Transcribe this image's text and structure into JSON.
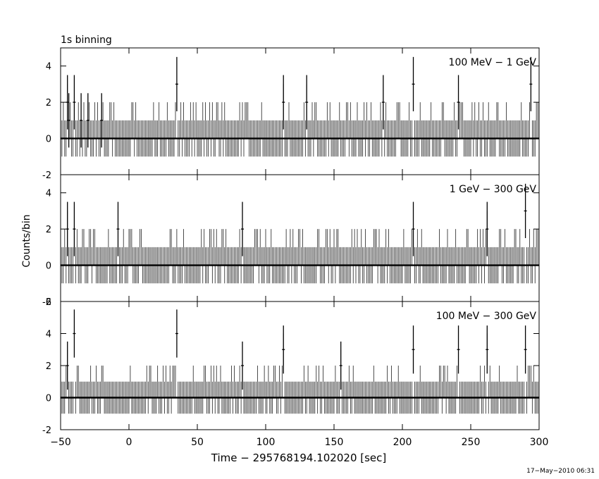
{
  "chart_data": {
    "type": "line",
    "title": "1s binning",
    "xlabel": "Time − 295768194.102020 [sec]",
    "ylabel": "Counts/bin",
    "xlim": [
      -50,
      300
    ],
    "x_ticks": [
      -50,
      0,
      50,
      100,
      150,
      200,
      250,
      300
    ],
    "bin_width_sec": 1,
    "panels": [
      {
        "name": "100 MeV − 1 GeV",
        "ylim": [
          -2,
          5
        ],
        "y_ticks": [
          -2,
          0,
          2,
          4
        ],
        "bins": [
          {
            "x": -45,
            "y": 2
          },
          {
            "x": -44,
            "y": 1
          },
          {
            "x": -40,
            "y": 2
          },
          {
            "x": -35,
            "y": 1
          },
          {
            "x": -30,
            "y": 1
          },
          {
            "x": -20,
            "y": 1
          },
          {
            "x": 35,
            "y": 3
          },
          {
            "x": 113,
            "y": 2
          },
          {
            "x": 130,
            "y": 2
          },
          {
            "x": 186,
            "y": 2
          },
          {
            "x": 208,
            "y": 3
          },
          {
            "x": 241,
            "y": 2
          },
          {
            "x": 294,
            "y": 3
          }
        ]
      },
      {
        "name": "1 GeV − 300 GeV",
        "ylim": [
          -2,
          5
        ],
        "y_ticks": [
          -2,
          0,
          2,
          4
        ],
        "bins": [
          {
            "x": -45,
            "y": 2
          },
          {
            "x": -40,
            "y": 2
          },
          {
            "x": -8,
            "y": 2
          },
          {
            "x": 83,
            "y": 2
          },
          {
            "x": 208,
            "y": 2
          },
          {
            "x": 262,
            "y": 2
          },
          {
            "x": 290,
            "y": 3
          }
        ]
      },
      {
        "name": "100 MeV − 300 GeV",
        "ylim": [
          -2,
          6
        ],
        "y_ticks": [
          -2,
          0,
          2,
          4,
          6
        ],
        "bins": [
          {
            "x": -40,
            "y": 4
          },
          {
            "x": -45,
            "y": 2
          },
          {
            "x": 35,
            "y": 4
          },
          {
            "x": 83,
            "y": 2
          },
          {
            "x": 113,
            "y": 3
          },
          {
            "x": 155,
            "y": 2
          },
          {
            "x": 208,
            "y": 3
          },
          {
            "x": 241,
            "y": 3
          },
          {
            "x": 262,
            "y": 3
          },
          {
            "x": 290,
            "y": 3
          }
        ]
      }
    ]
  },
  "timestamp": "17−May−2010 06:31"
}
